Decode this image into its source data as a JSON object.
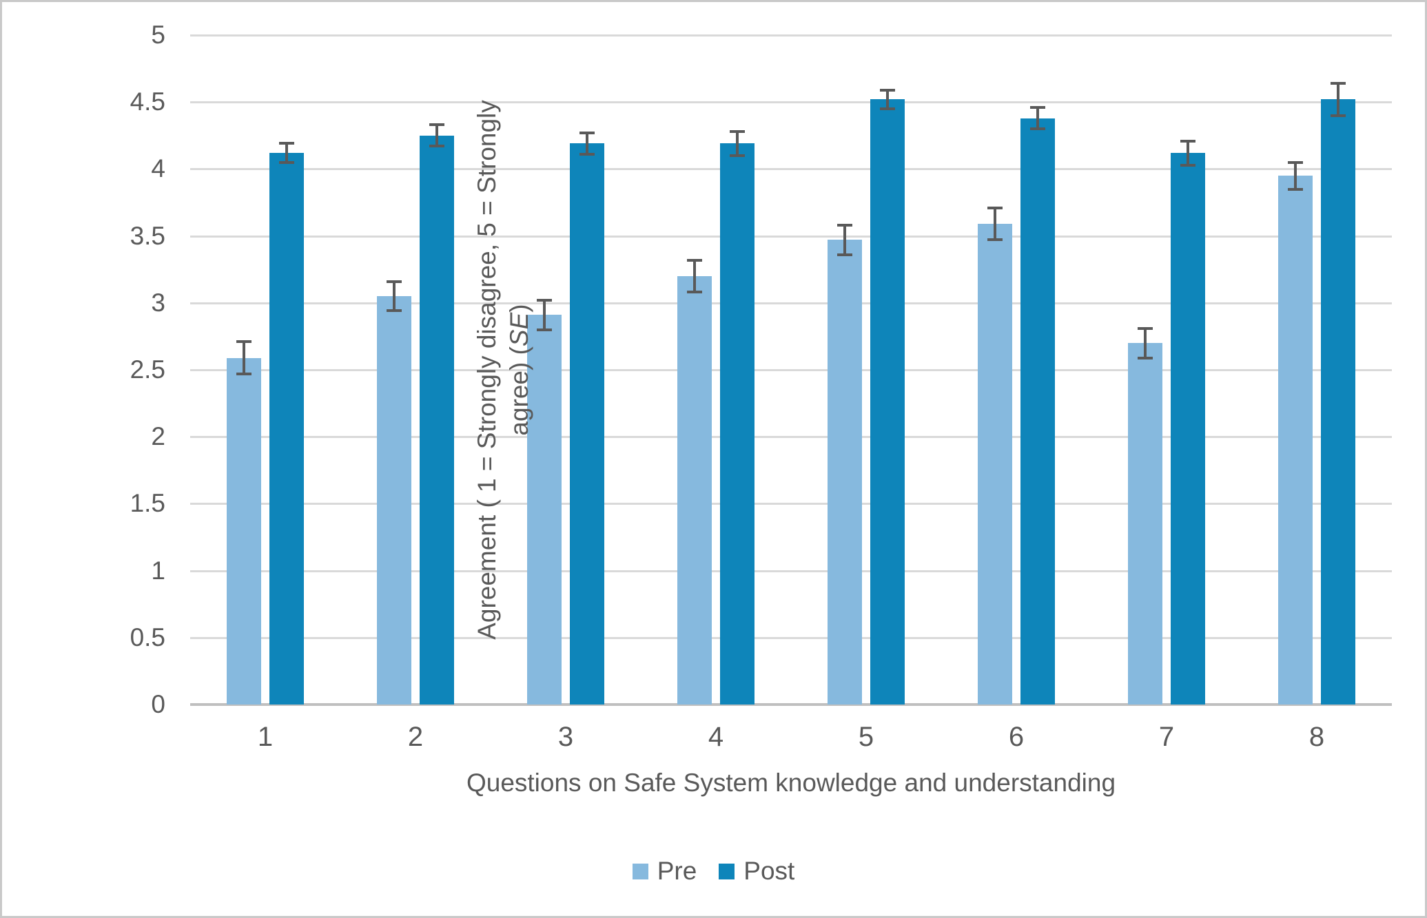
{
  "chart_data": {
    "type": "bar",
    "title": "",
    "categories": [
      "1",
      "2",
      "3",
      "4",
      "5",
      "6",
      "7",
      "8"
    ],
    "series": [
      {
        "name": "Pre",
        "color": "#86B9DE",
        "values": [
          2.59,
          3.05,
          2.91,
          3.2,
          3.47,
          3.59,
          2.7,
          3.95
        ],
        "se": [
          0.12,
          0.11,
          0.11,
          0.12,
          0.11,
          0.12,
          0.11,
          0.1
        ]
      },
      {
        "name": "Post",
        "color": "#0E85BA",
        "values": [
          4.12,
          4.25,
          4.19,
          4.19,
          4.52,
          4.38,
          4.12,
          4.52
        ],
        "se": [
          0.07,
          0.08,
          0.08,
          0.09,
          0.07,
          0.08,
          0.09,
          0.12
        ]
      }
    ],
    "xlabel": "Questions on Safe System knowledge and understanding",
    "ylabel": "Agreement ( 1 = Strongly disagree, 5 = Strongly agree) (SE)",
    "ylabel_lines": {
      "line1": "Agreement ( 1 = Strongly disagree, 5 = Strongly",
      "line2_prefix": "agree) (",
      "line2_italic": "SE",
      "line2_suffix": ")"
    },
    "ylim": [
      0,
      5
    ],
    "ytick_step": 0.5,
    "yticks": [
      "0",
      "0.5",
      "1",
      "1.5",
      "2",
      "2.5",
      "3",
      "3.5",
      "4",
      "4.5",
      "5"
    ],
    "grid": "horizontal",
    "legend": {
      "position": "bottom",
      "entries": [
        "Pre",
        "Post"
      ]
    },
    "colors": {
      "gridline": "#D9D9D9",
      "axis_line": "#BFBFBF",
      "text": "#595959",
      "error_bar": "#595959",
      "background": "#FFFFFF",
      "frame_border": "#C9C9C9"
    }
  }
}
